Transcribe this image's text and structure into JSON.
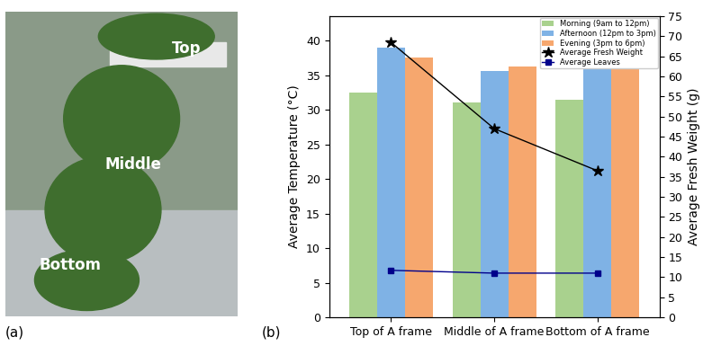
{
  "photo": {
    "panel_label": "(a)",
    "labels": [
      "Top",
      "Middle",
      "Bottom"
    ]
  },
  "chart_data": {
    "type": "bar",
    "panel_label": "(b)",
    "categories": [
      "Top of A frame",
      "Middle of A frame",
      "Bottom of A frame"
    ],
    "y_label": "Average Temperature (°C)",
    "y2_label": "Average Fresh Weight (g)",
    "ylim": [
      0,
      43.5
    ],
    "yticks": [
      0,
      5,
      10,
      15,
      20,
      25,
      30,
      35,
      40
    ],
    "y2lim": [
      0,
      75
    ],
    "y2ticks": [
      0,
      5,
      10,
      15,
      20,
      25,
      30,
      35,
      40,
      45,
      50,
      55,
      60,
      65,
      70,
      75
    ],
    "legend": "upper right",
    "grid": false,
    "series": [
      {
        "name": "Morning (9am to 12pm)",
        "type": "bar",
        "color": "#a9d18e",
        "values": [
          32.5,
          31.0,
          31.4
        ]
      },
      {
        "name": "Afternoon (12pm to 3pm)",
        "type": "bar",
        "color": "#7fb2e5",
        "values": [
          39.0,
          35.6,
          36.1
        ]
      },
      {
        "name": "Evening (3pm to 6pm)",
        "type": "bar",
        "color": "#f6a76e",
        "values": [
          37.5,
          36.3,
          35.9
        ]
      },
      {
        "name": "Average Fresh Weight",
        "type": "line",
        "axis": "y2",
        "color": "#000000",
        "marker": "star",
        "line_style": "solid",
        "values": [
          68.5,
          47.0,
          36.5
        ]
      },
      {
        "name": "Average Leaves",
        "type": "line",
        "axis": "y2",
        "color": "#00008b",
        "marker": "square",
        "line_style": "solid",
        "values": [
          11.7,
          11.0,
          11.0
        ]
      }
    ]
  }
}
